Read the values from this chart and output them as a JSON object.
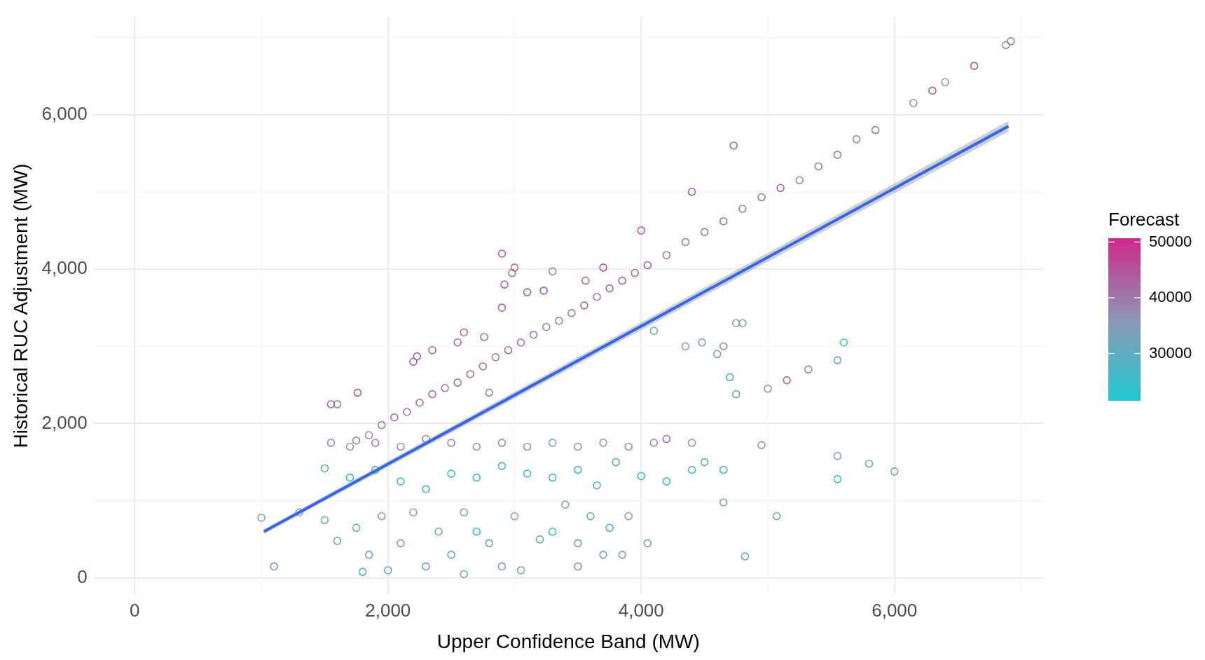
{
  "chart_data": {
    "type": "scatter",
    "xlabel": "Upper Confidence Band (MW)",
    "ylabel": "Historical RUC Adjustment (MW)",
    "clabel": "Forecast",
    "xlim": [
      -330,
      7180
    ],
    "ylim": [
      -220,
      7270
    ],
    "xticks": [
      {
        "value": 0,
        "label": "0"
      },
      {
        "value": 2000,
        "label": "2,000"
      },
      {
        "value": 4000,
        "label": "4,000"
      },
      {
        "value": 6000,
        "label": "6,000"
      }
    ],
    "yticks": [
      {
        "value": 0,
        "label": "0"
      },
      {
        "value": 2000,
        "label": "2,000"
      },
      {
        "value": 4000,
        "label": "4,000"
      },
      {
        "value": 6000,
        "label": "6,000"
      }
    ],
    "clim": [
      21500,
      50700
    ],
    "cticks": [
      30000,
      40000,
      50000
    ],
    "grid": true,
    "series": [
      {
        "marker": "circle",
        "x": [
          1750,
          1850,
          1950,
          2050,
          2150,
          2250,
          2350,
          2450,
          2550,
          2650,
          2750,
          2850,
          2950,
          3050,
          3150,
          3250,
          3350,
          3450,
          3550,
          3650,
          3750,
          3850,
          3950,
          4050,
          4200,
          4350,
          4500,
          4650,
          4800,
          4950,
          5100,
          5250,
          5400,
          5550,
          5700,
          5850,
          6150,
          6300,
          6400,
          6630,
          6880,
          6920,
          2600,
          2550,
          2760,
          2900,
          2920,
          2980,
          3000,
          3100,
          3230,
          3300,
          3560,
          3700,
          2900,
          4000,
          4400,
          4730,
          2200,
          2230,
          2350,
          1760,
          1550,
          1600,
          2800,
          4100,
          4350,
          4480,
          4650,
          4750,
          4800,
          5600,
          5550,
          5320,
          5150,
          5000,
          4600,
          4700,
          4750,
          1550,
          1700,
          1900,
          2100,
          2300,
          2500,
          2700,
          2900,
          3100,
          3300,
          3500,
          3700,
          3900,
          4100,
          4200,
          4400,
          4950,
          5550,
          5800,
          6000,
          1500,
          1700,
          1900,
          2100,
          2300,
          2500,
          2700,
          2900,
          3100,
          3300,
          3500,
          3650,
          3800,
          4000,
          4200,
          4400,
          4500,
          4650,
          5550,
          5070,
          1000,
          1100,
          1300,
          1500,
          1600,
          1750,
          1850,
          1950,
          2000,
          2100,
          2200,
          2300,
          2400,
          2500,
          2600,
          2600,
          2700,
          2800,
          2900,
          3000,
          3050,
          3200,
          3300,
          3400,
          3500,
          3500,
          3600,
          3700,
          3750,
          3850,
          3900,
          4050,
          4650,
          4820,
          1800
        ],
        "values": [
          1780,
          1850,
          1980,
          2080,
          2150,
          2270,
          2380,
          2460,
          2530,
          2640,
          2740,
          2860,
          2950,
          3050,
          3150,
          3250,
          3330,
          3430,
          3530,
          3640,
          3750,
          3850,
          3950,
          4050,
          4180,
          4350,
          4480,
          4620,
          4780,
          4930,
          5050,
          5150,
          5330,
          5480,
          5680,
          5800,
          6150,
          6310,
          6420,
          6630,
          6900,
          6950,
          3180,
          3050,
          3120,
          4200,
          3800,
          3950,
          4020,
          3700,
          3720,
          3970,
          3850,
          4020,
          3500,
          4500,
          5000,
          5600,
          2800,
          2870,
          2950,
          2400,
          2250,
          2250,
          2400,
          3200,
          3000,
          3050,
          3000,
          3300,
          3300,
          3050,
          2820,
          2700,
          2560,
          2450,
          2900,
          2600,
          2380,
          1750,
          1700,
          1750,
          1700,
          1800,
          1750,
          1700,
          1750,
          1700,
          1750,
          1700,
          1750,
          1700,
          1750,
          1800,
          1750,
          1720,
          1580,
          1480,
          1380,
          1420,
          1300,
          1400,
          1250,
          1150,
          1350,
          1300,
          1450,
          1350,
          1300,
          1400,
          1200,
          1500,
          1320,
          1250,
          1400,
          1500,
          1400,
          1280,
          800,
          780,
          150,
          850,
          750,
          480,
          650,
          300,
          800,
          100,
          450,
          850,
          150,
          600,
          300,
          850,
          50,
          600,
          450,
          150,
          800,
          100,
          500,
          600,
          950,
          450,
          150,
          800,
          300,
          650,
          300,
          800,
          450,
          980,
          280,
          80
        ],
        "colors": [
          "#9d79a9",
          "#9488af",
          "#a171a7",
          "#a66aa4",
          "#9d79a9",
          "#a66aa4",
          "#a171a7",
          "#9d79a9",
          "#a66aa4",
          "#a171a7",
          "#a66aa4",
          "#9d79a9",
          "#aa62a1",
          "#a66aa4",
          "#a171a7",
          "#9d79a9",
          "#9488af",
          "#9980ac",
          "#a66aa4",
          "#a171a7",
          "#aa62a1",
          "#a66aa4",
          "#a66aa4",
          "#aa62a1",
          "#a66aa4",
          "#9d79a9",
          "#a171a7",
          "#a66aa4",
          "#9d79a9",
          "#a171a7",
          "#aa62a1",
          "#9488af",
          "#9d79a9",
          "#a171a7",
          "#908fb2",
          "#9d79a9",
          "#8b96b4",
          "#af5a9e",
          "#8b96b4",
          "#b3539c",
          "#9488af",
          "#9488af",
          "#a66aa4",
          "#aa62a1",
          "#a66aa4",
          "#b3539c",
          "#aa62a1",
          "#a171a7",
          "#aa62a1",
          "#aa62a1",
          "#b3539c",
          "#9488af",
          "#a66aa4",
          "#b3539c",
          "#aa62a1",
          "#b3539c",
          "#af5a9e",
          "#aa62a1",
          "#aa62a1",
          "#aa62a1",
          "#aa62a1",
          "#aa62a1",
          "#aa62a1",
          "#a66aa4",
          "#9488af",
          "#75a1ba",
          "#7c9db8",
          "#75a1ba",
          "#9488af",
          "#849ab6",
          "#75a1ba",
          "#40b9c7",
          "#5eabc0",
          "#9488af",
          "#af5a9e",
          "#849ab6",
          "#6da4bc",
          "#4fb2c4",
          "#6da4bc",
          "#9488af",
          "#8b96b4",
          "#9d79a9",
          "#908fb2",
          "#9d79a9",
          "#9488af",
          "#8b96b4",
          "#9980ac",
          "#849ab6",
          "#7c9db8",
          "#8b96b4",
          "#849ab6",
          "#908fb2",
          "#9488af",
          "#a66aa4",
          "#849ab6",
          "#849ab6",
          "#75a1ba",
          "#6da4bc",
          "#6da4bc",
          "#5eabc0",
          "#38bcc9",
          "#4fb2c4",
          "#40b9c7",
          "#38bcc9",
          "#47b5c5",
          "#40b9c7",
          "#57aec2",
          "#4fb2c4",
          "#47b5c5",
          "#4fb2c4",
          "#47b5c5",
          "#57aec2",
          "#40b9c7",
          "#38bcc9",
          "#4fb2c4",
          "#5eabc0",
          "#4fb2c4",
          "#38bcc9",
          "#75a1ba",
          "#75a1ba",
          "#75a1ba",
          "#75a1ba",
          "#66a7be",
          "#6da4bc",
          "#57aec2",
          "#75a1ba",
          "#6da4bc",
          "#6da4bc",
          "#75a1ba",
          "#75a1ba",
          "#6da4bc",
          "#6da4bc",
          "#5eabc0",
          "#75a1ba",
          "#6da4bc",
          "#38bcc9",
          "#66a7be",
          "#75a1ba",
          "#6da4bc",
          "#6da4bc",
          "#6da4bc",
          "#40b9c7",
          "#75a1ba",
          "#75a1ba",
          "#75a1ba",
          "#75a1ba",
          "#75a1ba",
          "#47b5c5",
          "#75a1ba",
          "#75a1ba",
          "#75a1ba",
          "#75a1ba",
          "#75a1ba",
          "#40b9c7"
        ]
      },
      {
        "type": "line",
        "color": "#3366ee",
        "x": [
          1020,
          6900
        ],
        "values": [
          600,
          5850
        ],
        "lower": [
          570,
          5780
        ],
        "upper": [
          630,
          5920
        ]
      }
    ]
  }
}
